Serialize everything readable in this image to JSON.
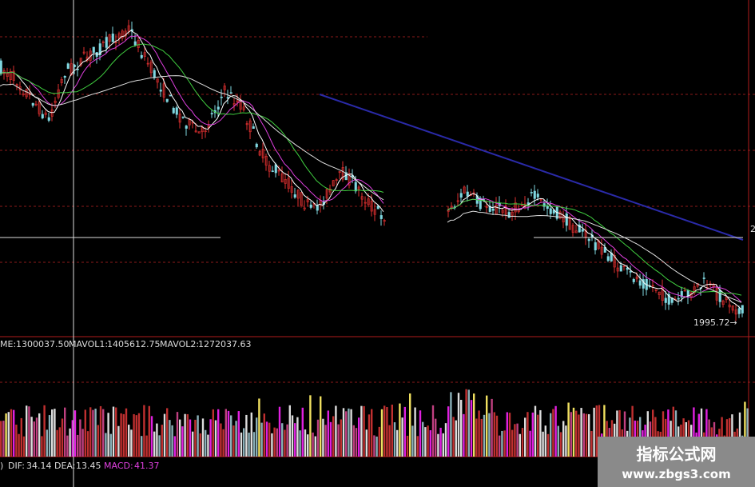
{
  "price_panel": {
    "right_edge_label": "2",
    "last_price_label": "1995.72→"
  },
  "volume_panel": {
    "items": [
      {
        "label": "ME:",
        "value": "1300037.50"
      },
      {
        "label": "MAVOL1:",
        "value": "1405612.75"
      },
      {
        "label": "MAVOL2:",
        "value": "1272037.63"
      }
    ]
  },
  "macd_panel": {
    "prefix": ")",
    "items": [
      {
        "label": "DIF:",
        "value": "34.14"
      },
      {
        "label": "DEA:",
        "value": "13.45"
      },
      {
        "label": "MACD:",
        "value": "41.37"
      }
    ]
  },
  "watermark": {
    "title": "指标公式网",
    "url": "www.zbgs3.com"
  }
}
